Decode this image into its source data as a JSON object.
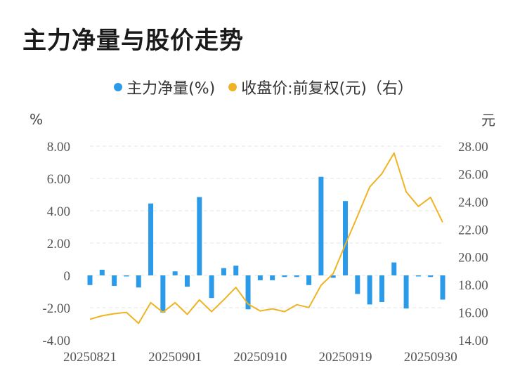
{
  "title": "主力净量与股价走势",
  "legend": {
    "bar_label": "主力净量(%)",
    "line_label": "收盘价:前复权(元)（右）"
  },
  "colors": {
    "bar": "#2b9ae8",
    "line": "#f0b323",
    "grid": "#e6e6e6",
    "text": "#555555"
  },
  "axes": {
    "left_unit": "%",
    "right_unit": "元"
  },
  "chart_data": {
    "type": "bar",
    "title": "主力净量与股价走势",
    "x_tick_labels": [
      "20250821",
      "20250901",
      "20250910",
      "20250919",
      "20250930"
    ],
    "x_tick_indices": [
      0,
      7,
      14,
      21,
      28
    ],
    "left_ticks": [
      "8.00",
      "6.00",
      "4.00",
      "2.00",
      "0",
      "-2.00",
      "-4.00"
    ],
    "right_ticks": [
      "28.00",
      "26.00",
      "24.00",
      "22.00",
      "20.00",
      "18.00",
      "16.00",
      "14.00"
    ],
    "ylim_left": [
      -4,
      8
    ],
    "ylim_right": [
      14,
      28
    ],
    "series": [
      {
        "name": "主力净量(%)",
        "kind": "bar",
        "axis": "left",
        "values": [
          -0.6,
          0.35,
          -0.65,
          -0.05,
          -0.75,
          4.45,
          -2.3,
          0.25,
          -0.7,
          4.85,
          -1.4,
          0.45,
          0.6,
          -2.1,
          -0.3,
          -0.3,
          -0.1,
          -0.1,
          -0.6,
          6.1,
          -0.15,
          4.6,
          -1.15,
          -1.8,
          -1.65,
          0.8,
          -2.05,
          -0.05,
          -0.1,
          -1.5
        ]
      },
      {
        "name": "收盘价:前复权(元)（右）",
        "kind": "line",
        "axis": "right",
        "values": [
          15.5,
          15.75,
          15.9,
          16.0,
          15.2,
          16.7,
          16.0,
          16.7,
          15.85,
          16.9,
          16.05,
          16.9,
          17.8,
          16.6,
          16.1,
          16.25,
          16.05,
          16.55,
          16.35,
          17.95,
          18.8,
          20.9,
          22.95,
          25.05,
          26.0,
          27.5,
          24.7,
          23.65,
          24.3,
          22.5
        ]
      }
    ]
  }
}
